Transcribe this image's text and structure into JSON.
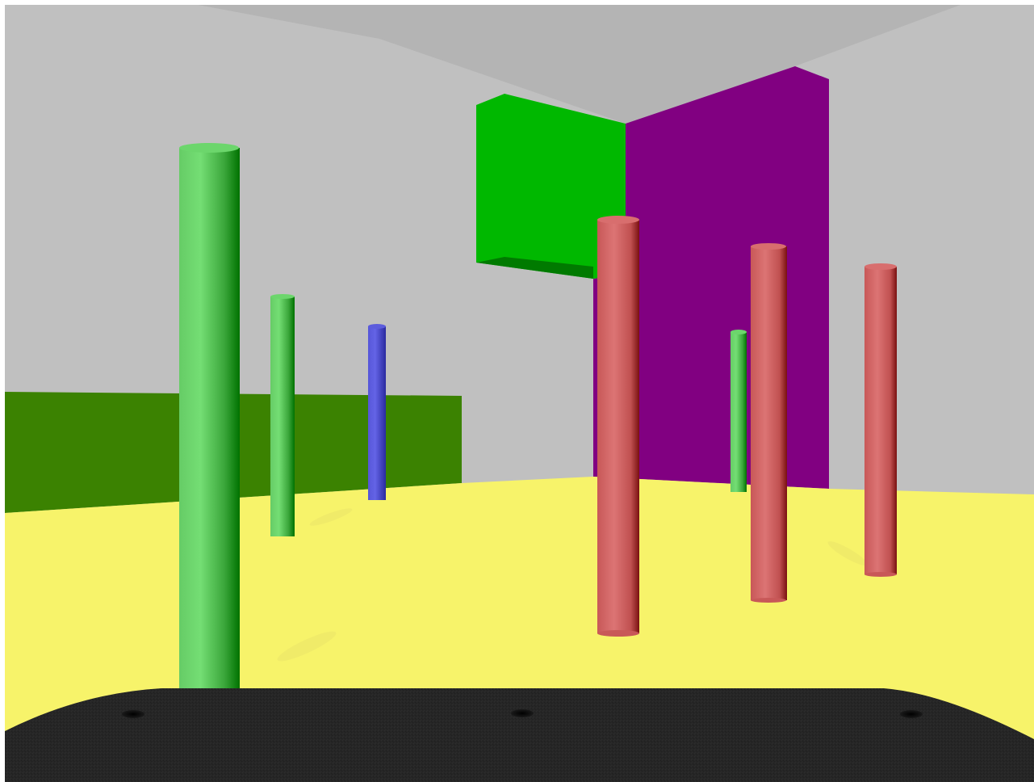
{
  "scene": {
    "type": "3d-first-person-room",
    "colors": {
      "ceiling": "#b4b4b4",
      "back_wall": "#c0c0c0",
      "floor": "#f7f36a",
      "floor_shadow": "#ede76a",
      "dark_green_wall": "#3b8201",
      "green_block_front": "#00b800",
      "green_block_bottom": "#007a00",
      "purple_wall": "#810081",
      "green_pillar": "#6cd66c",
      "green_pillar_dark": "#007200",
      "blue_pillar": "#5050d8",
      "blue_pillar_dark": "#2a2aa0",
      "red_pillar": "#d86e6e",
      "red_pillar_dark": "#7a1010",
      "agent_base": "#262626",
      "agent_hole": "#000000"
    },
    "objects": [
      "ceiling",
      "back-wall",
      "floor",
      "dark-green-wall",
      "green-block",
      "purple-wall",
      "green-pillar-near",
      "green-pillar-mid",
      "blue-pillar",
      "green-pillar-far",
      "red-pillar-left",
      "red-pillar-center",
      "red-pillar-right",
      "agent-base"
    ]
  }
}
